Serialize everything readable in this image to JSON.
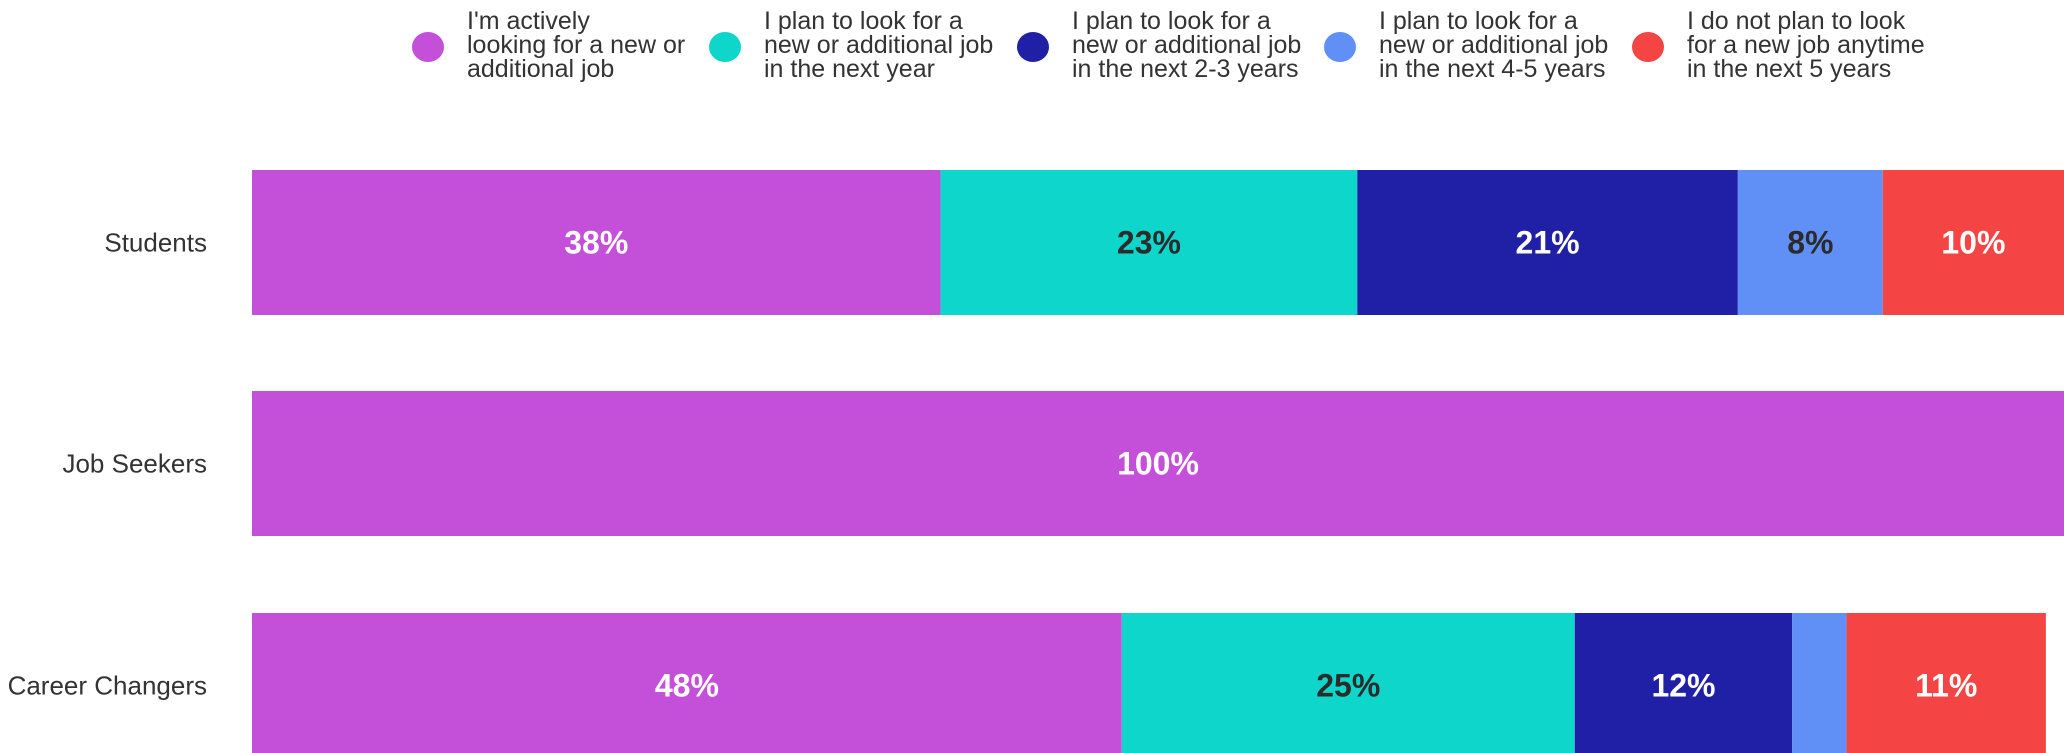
{
  "chart_data": {
    "type": "bar",
    "orientation": "horizontal",
    "stacked": true,
    "title": "",
    "xlabel": "",
    "ylabel": "",
    "xlim": [
      0,
      100
    ],
    "grid": false,
    "legend_position": "top",
    "categories": [
      "Students",
      "Job Seekers",
      "Career Changers"
    ],
    "series": [
      {
        "name": "I'm actively looking for a new or additional job",
        "legend_lines": [
          "I'm actively",
          "looking for a new or",
          "additional job"
        ],
        "color": "#c44fd8",
        "label_color": "#ffffff",
        "values": [
          38,
          100,
          48
        ],
        "labels": [
          "38%",
          "100%",
          "48%"
        ]
      },
      {
        "name": "I plan to look for a new or additional job in the next year",
        "legend_lines": [
          "I plan to look for a",
          "new or additional job",
          "in the next year"
        ],
        "color": "#0fd6ca",
        "label_color": "#2b2b2b",
        "values": [
          23,
          0,
          25
        ],
        "labels": [
          "23%",
          "",
          "25%"
        ]
      },
      {
        "name": "I plan to look for a new or additional job in the next 2-3 years",
        "legend_lines": [
          "I plan to look for a",
          "new or additional job",
          "in the next 2-3 years"
        ],
        "color": "#2020a6",
        "label_color": "#ffffff",
        "values": [
          21,
          0,
          12
        ],
        "labels": [
          "21%",
          "",
          "12%"
        ]
      },
      {
        "name": "I plan to look for a new or additional job in the next 4-5 years",
        "legend_lines": [
          "I plan to look for a",
          "new or additional job",
          "in the next 4-5 years"
        ],
        "color": "#6090f5",
        "label_color": "#2b2b2b",
        "values": [
          8,
          0,
          3
        ],
        "labels": [
          "8%",
          "",
          ""
        ]
      },
      {
        "name": "I do not plan to look for a new job anytime in the next 5 years",
        "legend_lines": [
          "I do not plan to look",
          "for a new job anytime",
          "in the next 5 years"
        ],
        "color": "#f54444",
        "label_color": "#ffffff",
        "values": [
          10,
          0,
          11
        ],
        "labels": [
          "10%",
          "",
          "11%"
        ]
      }
    ]
  }
}
